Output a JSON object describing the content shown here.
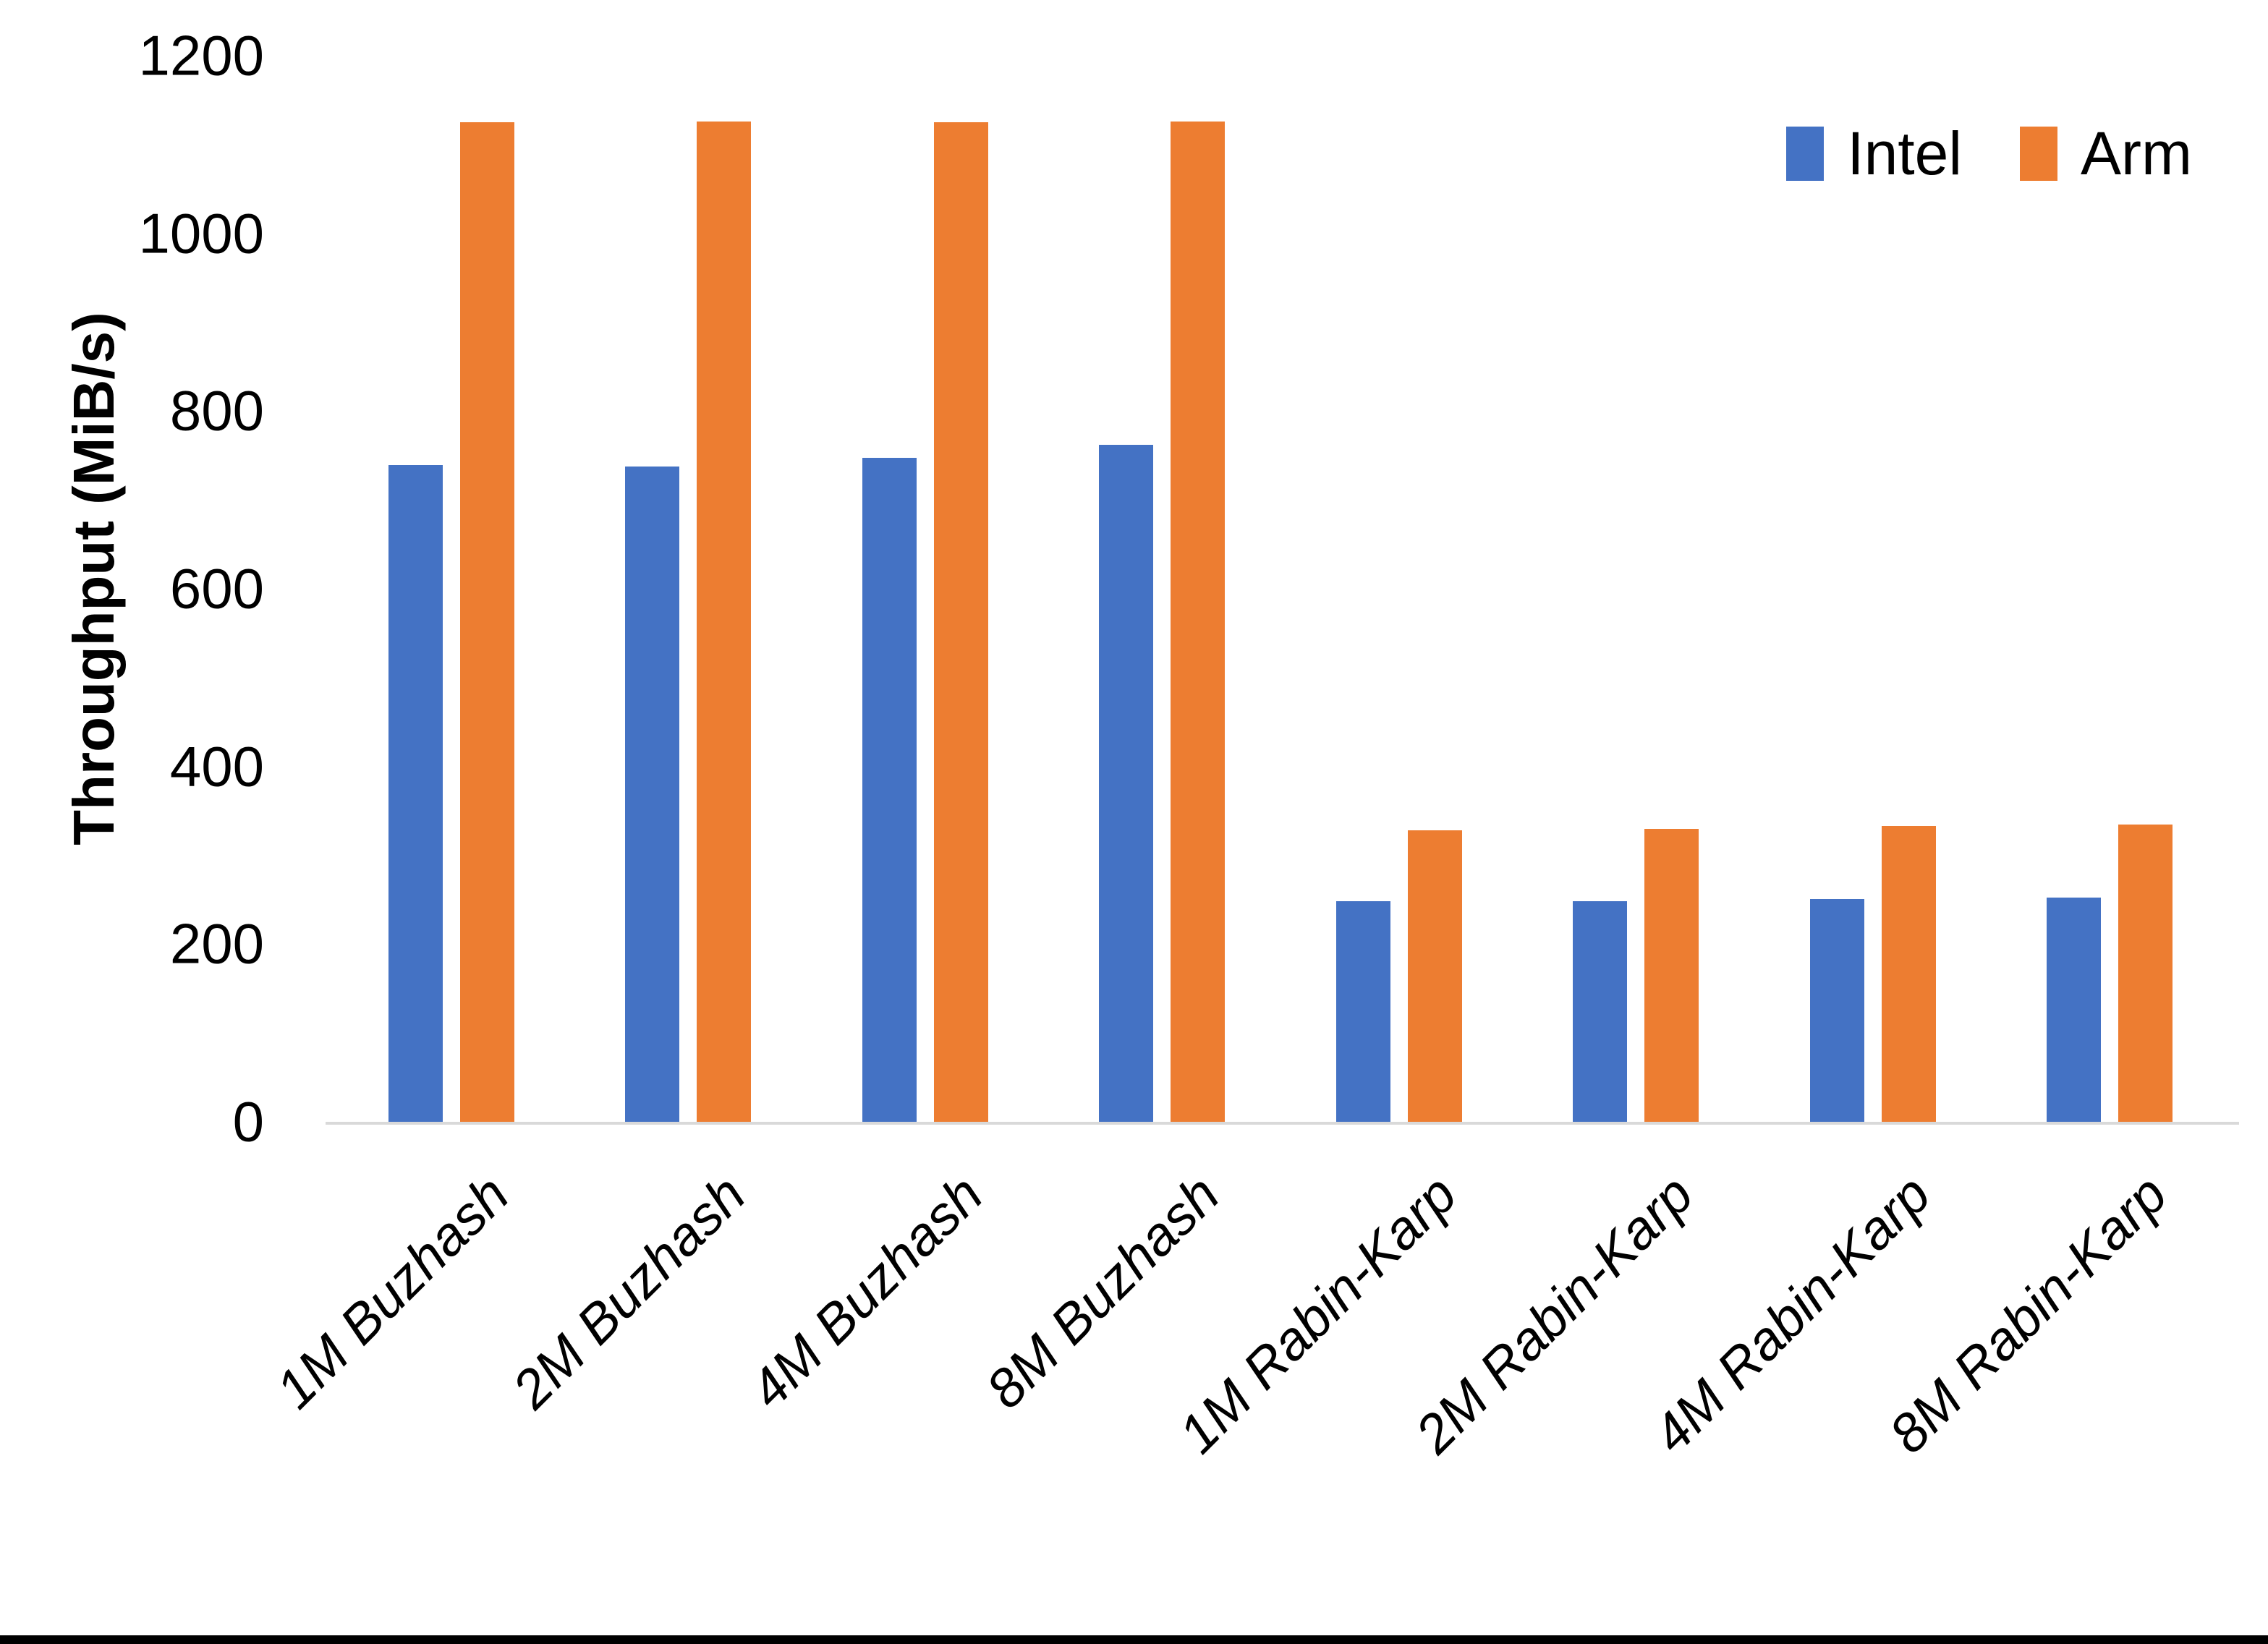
{
  "chart_data": {
    "type": "bar",
    "title": "",
    "xlabel": "",
    "ylabel": "Throughput (MiB/s)",
    "ylim": [
      0,
      1200
    ],
    "yticks": [
      0,
      200,
      400,
      600,
      800,
      1000,
      1200
    ],
    "grid": false,
    "legend_position": "top-right",
    "categories": [
      "1M Buzhash",
      "2M Buzhash",
      "4M Buzhash",
      "8M Buzhash",
      "1M Rabin-Karp",
      "2M Rabin-Karp",
      "4M Rabin-Karp",
      "8M Rabin-Karp"
    ],
    "series": [
      {
        "name": "Intel",
        "color": "#4472C4",
        "values": [
          739,
          738,
          747,
          762,
          248,
          248,
          251,
          252
        ]
      },
      {
        "name": "Arm",
        "color": "#ED7D31",
        "values": [
          1125,
          1126,
          1125,
          1126,
          328,
          330,
          333,
          335
        ]
      }
    ],
    "axis_line_color": "#D9D9D9",
    "text_color": "#000000",
    "background_color": "#FFFFFF",
    "bottom_border_color": "#000000"
  }
}
